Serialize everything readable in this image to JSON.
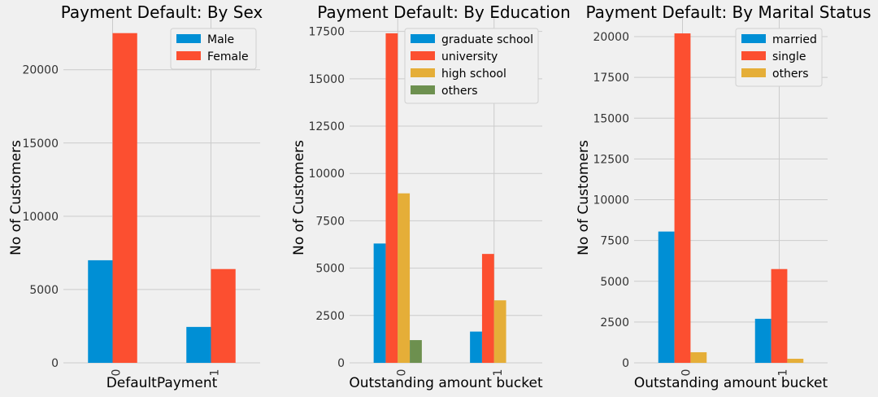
{
  "chart_data": [
    {
      "type": "bar",
      "title": "Payment Default: By Sex",
      "xlabel": "DefaultPayment",
      "ylabel": "No of Customers",
      "categories": [
        "0",
        "1"
      ],
      "ylim": [
        0,
        23650
      ],
      "yticks": [
        0,
        5000,
        10000,
        15000,
        20000
      ],
      "yticklabels": [
        "0",
        "5000",
        "10000",
        "15000",
        "20000"
      ],
      "legend_position": "top-right",
      "series": [
        {
          "name": "Male",
          "color": "#008fd5",
          "values": [
            7000,
            2450
          ]
        },
        {
          "name": "Female",
          "color": "#fc4f30",
          "values": [
            22500,
            6400
          ]
        }
      ]
    },
    {
      "type": "bar",
      "title": "Payment Default: By Education",
      "xlabel": "Outstanding amount bucket",
      "ylabel": "No of Customers",
      "categories": [
        "0",
        "1"
      ],
      "ylim": [
        0,
        18300
      ],
      "yticks": [
        0,
        2500,
        5000,
        7500,
        10000,
        12500,
        15000,
        17500
      ],
      "yticklabels": [
        "0",
        "2500",
        "5000",
        "7500",
        "10000",
        "12500",
        "15000",
        "17500"
      ],
      "legend_position": "top-right",
      "series": [
        {
          "name": "graduate school",
          "color": "#008fd5",
          "values": [
            6300,
            1650
          ]
        },
        {
          "name": "university",
          "color": "#fc4f30",
          "values": [
            17400,
            5750
          ]
        },
        {
          "name": "high school",
          "color": "#e5ae38",
          "values": [
            8950,
            3300
          ]
        },
        {
          "name": "others",
          "color": "#6d904f",
          "values": [
            1200,
            0
          ]
        }
      ]
    },
    {
      "type": "bar",
      "title": "Payment Default: By Marital Status",
      "xlabel": "Outstanding amount bucket",
      "ylabel": "No of Customers",
      "categories": [
        "0",
        "1"
      ],
      "ylim": [
        0,
        21250
      ],
      "yticks": [
        0,
        2500,
        5000,
        7500,
        10000,
        12500,
        15000,
        17500,
        20000
      ],
      "yticklabels": [
        "0",
        "2500",
        "5000",
        "7500",
        "10000",
        "12500",
        "15000",
        "17500",
        "20000"
      ],
      "legend_position": "top-right",
      "series": [
        {
          "name": "married",
          "color": "#008fd5",
          "values": [
            8050,
            2700
          ]
        },
        {
          "name": "single",
          "color": "#fc4f30",
          "values": [
            20200,
            5750
          ]
        },
        {
          "name": "others",
          "color": "#e5ae38",
          "values": [
            650,
            250
          ]
        }
      ]
    }
  ]
}
